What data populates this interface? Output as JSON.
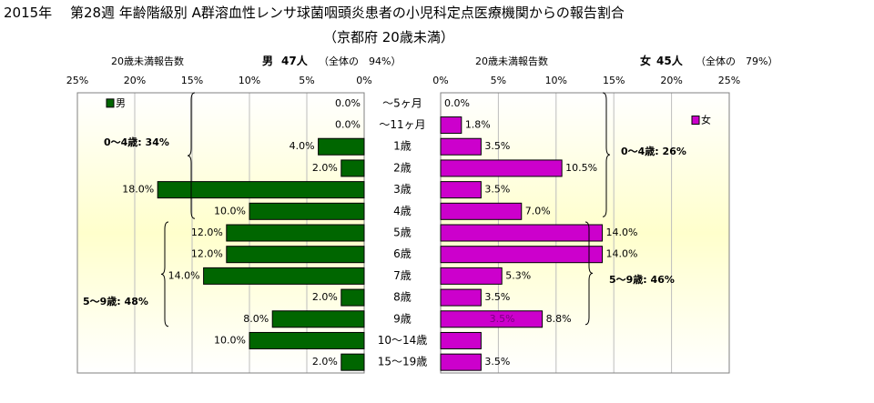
{
  "title_line1": "2015年　 第28週 年齢階級別 A群溶血性レンサ球菌咽頭炎患者の小児科定点医療機関からの報告割合",
  "title_line2": "（京都府 20歳未満）",
  "colors": {
    "male": "#006600",
    "female": "#cc00cc",
    "bg_top": "#ffffff",
    "bg_mid": "#ffffcc"
  },
  "chart_data": {
    "type": "bar",
    "categories": [
      "～5ヶ月",
      "～11ヶ月",
      "1歳",
      "2歳",
      "3歳",
      "4歳",
      "5歳",
      "6歳",
      "7歳",
      "8歳",
      "9歳",
      "10～14歳",
      "15～19歳"
    ],
    "xlim": [
      0,
      25
    ],
    "xticks": [
      "25%",
      "20%",
      "15%",
      "10%",
      "5%",
      "0%"
    ],
    "xticks_right": [
      "0%",
      "5%",
      "10%",
      "15%",
      "20%",
      "25%"
    ],
    "male": {
      "header_count_label": "20歳未満報告数",
      "header_sex": "男",
      "header_count": "47人",
      "header_share": "（全体の　94%）",
      "legend": "男",
      "values": [
        0.0,
        0.0,
        4.0,
        2.0,
        18.0,
        10.0,
        12.0,
        12.0,
        14.0,
        2.0,
        8.0,
        10.0,
        2.0
      ],
      "labels": [
        "0.0%",
        "0.0%",
        "4.0%",
        "2.0%",
        "18.0%",
        "10.0%",
        "12.0%",
        "12.0%",
        "14.0%",
        "2.0%",
        "8.0%",
        "10.0%",
        "2.0%"
      ],
      "groups": [
        {
          "label": "0～4歳: 34%"
        },
        {
          "label": "5～9歳: 48%"
        }
      ]
    },
    "female": {
      "header_count_label": "20歳未満報告数",
      "header_sex": "女",
      "header_count": "45人",
      "header_share": "（全体の　79%）",
      "legend": "女",
      "values": [
        0.0,
        1.8,
        3.5,
        10.5,
        3.5,
        7.0,
        14.0,
        14.0,
        5.3,
        3.5,
        8.8,
        3.5,
        3.5
      ],
      "labels": [
        "0.0%",
        "1.8%",
        "3.5%",
        "10.5%",
        "3.5%",
        "7.0%",
        "14.0%",
        "14.0%",
        "5.3%",
        "3.5%",
        "8.8%",
        "",
        "3.5%"
      ],
      "extra_label": {
        "text": "3.5%",
        "row": 10
      },
      "groups": [
        {
          "label": "0～4歳: 26%"
        },
        {
          "label": "5～9歳: 46%"
        }
      ]
    }
  }
}
